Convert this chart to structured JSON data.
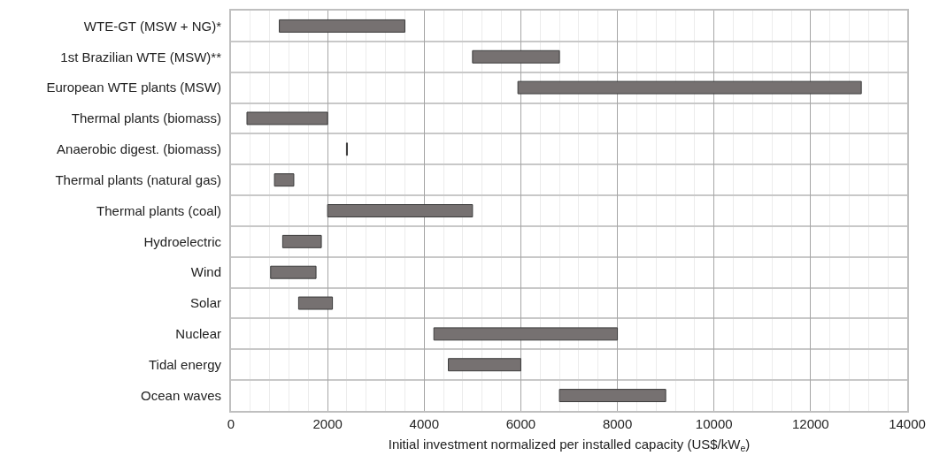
{
  "chart_data": {
    "type": "bar",
    "orientation": "horizontal",
    "xlabel": "Initial investment normalized per installed capacity (US$/kW$_{e}$)",
    "categories": [
      "WTE-GT (MSW + NG)*",
      "1st Brazilian WTE (MSW)**",
      "European WTE plants (MSW)",
      "Thermal plants (biomass)",
      "Anaerobic digest. (biomass)",
      "Thermal plants (natural gas)",
      "Thermal plants (coal)",
      "Hydroelectric",
      "Wind",
      "Solar",
      "Nuclear",
      "Tidal energy",
      "Ocean waves"
    ],
    "base": [
      1000,
      5000,
      5940,
      330,
      2390,
      900,
      2000,
      1070,
      820,
      1400,
      4200,
      4500,
      6800
    ],
    "values": [
      2600,
      1800,
      7110,
      1670,
      20,
      400,
      3000,
      800,
      940,
      700,
      3800,
      1500,
      2200
    ],
    "color": "#767171",
    "xlim": [
      0,
      14000
    ],
    "xticks": [
      0,
      2000,
      4000,
      6000,
      8000,
      10000,
      12000,
      14000
    ],
    "grid": true
  }
}
